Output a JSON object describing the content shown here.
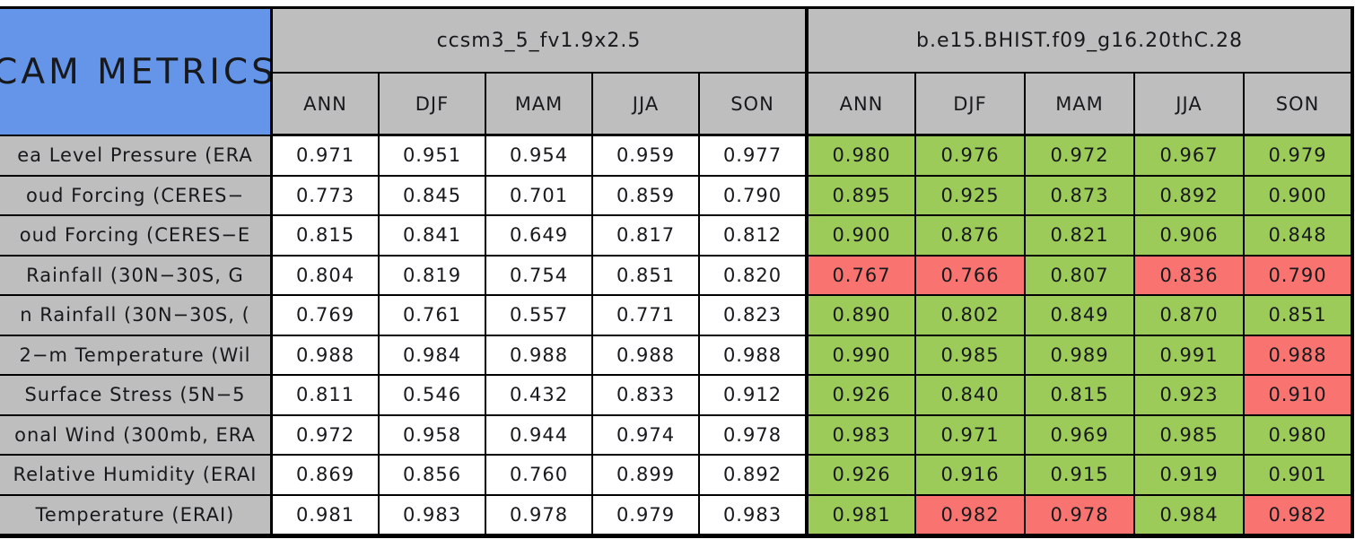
{
  "colors": {
    "header_blue": "#6495E8",
    "header_gray": "#BEBEBE",
    "cell_green": "#9CCB5A",
    "cell_red": "#F97470",
    "cell_white": "#FFFFFF",
    "border_black": "#000000",
    "text_dark": "#17191C"
  },
  "table": {
    "corner_title": "CAM METRICS",
    "models": [
      "ccsm3_5_fv1.9x2.5",
      "b.e15.BHIST.f09_g16.20thC.28"
    ],
    "season_labels": [
      "ANN",
      "DJF",
      "MAM",
      "JJA",
      "SON"
    ]
  },
  "chart_data": {
    "type": "table",
    "title": "CAM METRICS",
    "column_groups": [
      "ccsm3_5_fv1.9x2.5",
      "b.e15.BHIST.f09_g16.20thC.28"
    ],
    "columns_per_group": [
      "ANN",
      "DJF",
      "MAM",
      "JJA",
      "SON"
    ],
    "highlight_colors_meaning": "group2 cells are filled green or red; group1 cells are white",
    "rows": [
      {
        "label": "ea Level Pressure (ERA",
        "group1": [
          "0.971",
          "0.951",
          "0.954",
          "0.959",
          "0.977"
        ],
        "group2": [
          "0.980",
          "0.976",
          "0.972",
          "0.967",
          "0.979"
        ],
        "group2_colors": [
          "green",
          "green",
          "green",
          "green",
          "green"
        ]
      },
      {
        "label": "oud Forcing (CERES−",
        "group1": [
          "0.773",
          "0.845",
          "0.701",
          "0.859",
          "0.790"
        ],
        "group2": [
          "0.895",
          "0.925",
          "0.873",
          "0.892",
          "0.900"
        ],
        "group2_colors": [
          "green",
          "green",
          "green",
          "green",
          "green"
        ]
      },
      {
        "label": "oud Forcing (CERES−E",
        "group1": [
          "0.815",
          "0.841",
          "0.649",
          "0.817",
          "0.812"
        ],
        "group2": [
          "0.900",
          "0.876",
          "0.821",
          "0.906",
          "0.848"
        ],
        "group2_colors": [
          "green",
          "green",
          "green",
          "green",
          "green"
        ]
      },
      {
        "label": "Rainfall (30N−30S, G",
        "group1": [
          "0.804",
          "0.819",
          "0.754",
          "0.851",
          "0.820"
        ],
        "group2": [
          "0.767",
          "0.766",
          "0.807",
          "0.836",
          "0.790"
        ],
        "group2_colors": [
          "red",
          "red",
          "green",
          "red",
          "red"
        ]
      },
      {
        "label": "n Rainfall (30N−30S, (",
        "group1": [
          "0.769",
          "0.761",
          "0.557",
          "0.771",
          "0.823"
        ],
        "group2": [
          "0.890",
          "0.802",
          "0.849",
          "0.870",
          "0.851"
        ],
        "group2_colors": [
          "green",
          "green",
          "green",
          "green",
          "green"
        ]
      },
      {
        "label": "2−m Temperature (Wil",
        "group1": [
          "0.988",
          "0.984",
          "0.988",
          "0.988",
          "0.988"
        ],
        "group2": [
          "0.990",
          "0.985",
          "0.989",
          "0.991",
          "0.988"
        ],
        "group2_colors": [
          "green",
          "green",
          "green",
          "green",
          "red"
        ]
      },
      {
        "label": "Surface Stress (5N−5",
        "group1": [
          "0.811",
          "0.546",
          "0.432",
          "0.833",
          "0.912"
        ],
        "group2": [
          "0.926",
          "0.840",
          "0.815",
          "0.923",
          "0.910"
        ],
        "group2_colors": [
          "green",
          "green",
          "green",
          "green",
          "red"
        ]
      },
      {
        "label": "onal Wind (300mb, ERA",
        "group1": [
          "0.972",
          "0.958",
          "0.944",
          "0.974",
          "0.978"
        ],
        "group2": [
          "0.983",
          "0.971",
          "0.969",
          "0.985",
          "0.980"
        ],
        "group2_colors": [
          "green",
          "green",
          "green",
          "green",
          "green"
        ]
      },
      {
        "label": "Relative Humidity (ERAI",
        "group1": [
          "0.869",
          "0.856",
          "0.760",
          "0.899",
          "0.892"
        ],
        "group2": [
          "0.926",
          "0.916",
          "0.915",
          "0.919",
          "0.901"
        ],
        "group2_colors": [
          "green",
          "green",
          "green",
          "green",
          "green"
        ]
      },
      {
        "label": "Temperature (ERAI)",
        "group1": [
          "0.981",
          "0.983",
          "0.978",
          "0.979",
          "0.983"
        ],
        "group2": [
          "0.981",
          "0.982",
          "0.978",
          "0.984",
          "0.982"
        ],
        "group2_colors": [
          "green",
          "red",
          "red",
          "green",
          "red"
        ]
      }
    ]
  }
}
